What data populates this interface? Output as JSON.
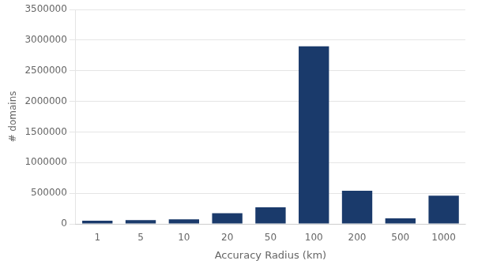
{
  "chart_data": {
    "type": "bar",
    "categories": [
      "1",
      "5",
      "10",
      "20",
      "50",
      "100",
      "200",
      "500",
      "1000"
    ],
    "values": [
      50000,
      60000,
      75000,
      175000,
      270000,
      2900000,
      540000,
      90000,
      460000
    ],
    "color": "#1a3a6b",
    "xlabel": "Accuracy Radius (km)",
    "ylabel": "# domains",
    "ylim": [
      0,
      3500000
    ],
    "yticks": [
      0,
      500000,
      1000000,
      1500000,
      2000000,
      2500000,
      3000000,
      3500000
    ],
    "grid": true
  }
}
